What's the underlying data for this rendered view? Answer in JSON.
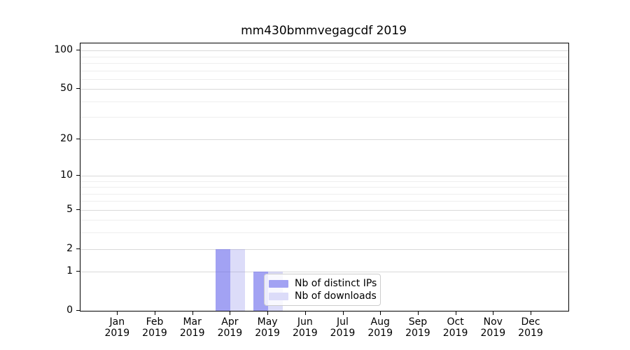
{
  "chart_data": {
    "type": "bar",
    "title": "mm430bmmvegagcdf 2019",
    "categories": [
      "Jan 2019",
      "Feb 2019",
      "Mar 2019",
      "Apr 2019",
      "May 2019",
      "Jun 2019",
      "Jul 2019",
      "Aug 2019",
      "Sep 2019",
      "Oct 2019",
      "Nov 2019",
      "Dec 2019"
    ],
    "series": [
      {
        "name": "Nb of distinct IPs",
        "color": "#a2a2f3",
        "fill": "rgba(100,100,235,0.6)",
        "values": [
          0,
          0,
          0,
          2,
          1,
          0,
          0,
          0,
          0,
          0,
          0,
          0
        ]
      },
      {
        "name": "Nb of downloads",
        "color": "#dcdcf9",
        "fill": "rgba(140,140,235,0.3)",
        "values": [
          0,
          0,
          0,
          2,
          1,
          0,
          0,
          0,
          0,
          0,
          0,
          0
        ]
      }
    ],
    "yscale": "log10(1+y)",
    "ylim": [
      0,
      112
    ],
    "y_ticks": [
      0,
      1,
      2,
      5,
      10,
      20,
      50,
      100
    ],
    "y_minor_grid": [
      3,
      4,
      6,
      7,
      8,
      9,
      30,
      40,
      60,
      70,
      80,
      90
    ],
    "grid": true,
    "legend": {
      "location": "inside lower-center",
      "items": [
        "Nb of distinct IPs",
        "Nb of downloads"
      ]
    }
  },
  "colors": {
    "major_grid": "#d9d9d9",
    "minor_grid": "#eeeeee",
    "spine": "#000000",
    "text": "#000000",
    "legend_border": "#cccccc"
  }
}
